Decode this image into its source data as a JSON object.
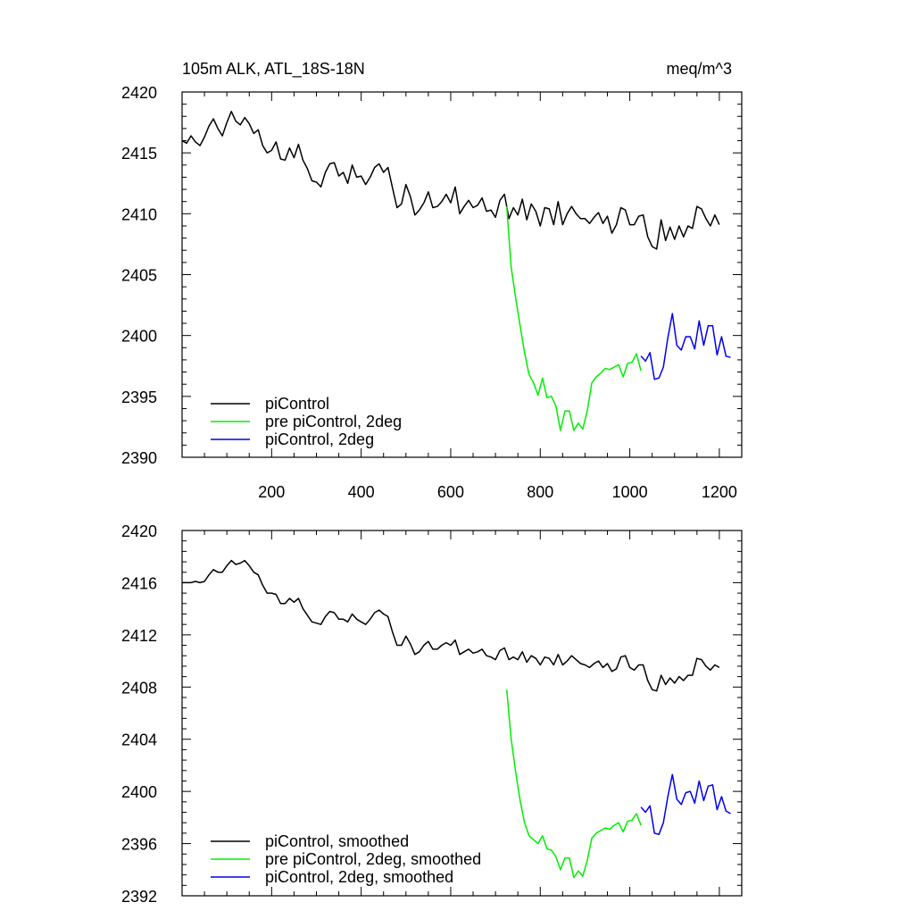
{
  "chart_data": [
    {
      "type": "line",
      "title_left": "105m ALK, ATL_18S-18N",
      "title_right": "meq/m^3",
      "xlim": [
        0,
        1250
      ],
      "ylim": [
        2390,
        2420
      ],
      "x_tick_labels": [
        "200",
        "400",
        "600",
        "800",
        "1000",
        "1200"
      ],
      "y_tick_labels": [
        "2390",
        "2395",
        "2400",
        "2405",
        "2410",
        "2415",
        "2420"
      ],
      "x_ticks": [
        200,
        400,
        600,
        800,
        1000,
        1200
      ],
      "y_ticks": [
        2390,
        2395,
        2400,
        2405,
        2410,
        2415,
        2420
      ],
      "legend_position": "bottom-left",
      "series": [
        {
          "name": "piControl",
          "color": "#000000",
          "x_start": 0,
          "x_step": 10,
          "values": [
            2416.0,
            2415.8,
            2416.4,
            2415.9,
            2415.6,
            2416.3,
            2417.2,
            2417.8,
            2417.0,
            2416.4,
            2417.5,
            2418.4,
            2417.6,
            2417.3,
            2417.9,
            2417.4,
            2416.6,
            2416.9,
            2415.6,
            2415.0,
            2415.2,
            2415.9,
            2414.5,
            2414.4,
            2415.4,
            2414.6,
            2415.7,
            2414.4,
            2413.7,
            2412.7,
            2412.6,
            2412.2,
            2413.4,
            2414.1,
            2414.2,
            2413.1,
            2413.4,
            2412.5,
            2414.0,
            2413.0,
            2413.1,
            2412.4,
            2413.0,
            2413.8,
            2414.1,
            2413.4,
            2413.8,
            2412.1,
            2410.5,
            2410.8,
            2412.4,
            2411.4,
            2409.9,
            2410.3,
            2410.9,
            2411.8,
            2410.5,
            2410.6,
            2411.0,
            2411.6,
            2410.9,
            2412.2,
            2410.0,
            2410.6,
            2411.1,
            2410.5,
            2410.7,
            2411.3,
            2410.2,
            2410.3,
            2409.7,
            2411.1,
            2411.6,
            2409.6,
            2410.5,
            2409.9,
            2411.2,
            2409.5,
            2410.8,
            2410.2,
            2409.0,
            2410.5,
            2410.4,
            2409.1,
            2411.0,
            2409.1,
            2410.0,
            2410.6,
            2410.0,
            2409.6,
            2409.6,
            2409.2,
            2409.7,
            2410.1,
            2409.2,
            2409.8,
            2408.4,
            2409.1,
            2410.5,
            2410.3,
            2409.1,
            2409.1,
            2409.8,
            2409.9,
            2408.1,
            2407.3,
            2407.1,
            2409.5,
            2407.8,
            2408.9,
            2407.9,
            2409.0,
            2408.1,
            2409.0,
            2408.8,
            2410.6,
            2410.4,
            2409.6,
            2409.0,
            2409.9,
            2409.1
          ]
        },
        {
          "name": "pre piControl, 2deg",
          "color": "#00ee00",
          "x_start": 725,
          "x_step": 10,
          "values": [
            2410.6,
            2405.6,
            2403.1,
            2400.8,
            2398.6,
            2396.8,
            2396.1,
            2395.1,
            2396.5,
            2394.9,
            2395.0,
            2394.2,
            2392.2,
            2393.8,
            2393.8,
            2392.2,
            2392.8,
            2392.3,
            2393.8,
            2396.1,
            2396.6,
            2396.9,
            2397.3,
            2397.2,
            2397.4,
            2397.6,
            2396.6,
            2397.7,
            2397.8,
            2398.5,
            2397.1
          ]
        },
        {
          "name": "piControl, 2deg",
          "color": "#0000ee",
          "x_start": 1025,
          "x_step": 10,
          "values": [
            2398.3,
            2397.9,
            2398.6,
            2396.4,
            2396.5,
            2397.4,
            2399.8,
            2401.8,
            2399.2,
            2398.8,
            2399.9,
            2399.9,
            2398.9,
            2401.2,
            2399.2,
            2400.8,
            2400.8,
            2398.4,
            2399.9,
            2398.3,
            2398.2
          ]
        }
      ]
    },
    {
      "type": "line",
      "xlim": [
        0,
        1250
      ],
      "ylim": [
        2392,
        2420
      ],
      "x_tick_labels": [],
      "y_tick_labels": [
        "2392",
        "2396",
        "2400",
        "2404",
        "2408",
        "2412",
        "2416",
        "2420"
      ],
      "x_ticks": [
        200,
        400,
        600,
        800,
        1000,
        1200
      ],
      "y_ticks": [
        2392,
        2396,
        2400,
        2404,
        2408,
        2412,
        2416,
        2420
      ],
      "legend_position": "bottom-left",
      "series": [
        {
          "name": "piControl, smoothed",
          "color": "#000000",
          "x_start": 0,
          "x_step": 10,
          "values": [
            2416.0,
            2416.0,
            2416.0,
            2416.1,
            2416.0,
            2416.1,
            2416.6,
            2417.0,
            2416.8,
            2416.8,
            2417.3,
            2417.7,
            2417.4,
            2417.5,
            2417.7,
            2417.3,
            2416.8,
            2416.6,
            2415.8,
            2415.2,
            2415.2,
            2415.1,
            2414.4,
            2414.4,
            2414.8,
            2414.5,
            2414.8,
            2414.0,
            2413.5,
            2413.0,
            2412.9,
            2412.8,
            2413.4,
            2413.8,
            2413.7,
            2413.2,
            2413.2,
            2413.0,
            2413.6,
            2413.2,
            2413.0,
            2412.8,
            2413.2,
            2413.7,
            2413.9,
            2413.6,
            2413.4,
            2412.2,
            2411.2,
            2411.2,
            2411.9,
            2411.3,
            2410.5,
            2410.7,
            2411.2,
            2411.5,
            2410.9,
            2410.9,
            2411.2,
            2411.4,
            2411.2,
            2411.6,
            2410.5,
            2410.7,
            2410.9,
            2410.6,
            2410.7,
            2410.9,
            2410.4,
            2410.3,
            2410.1,
            2410.8,
            2411.0,
            2410.1,
            2410.3,
            2410.1,
            2410.7,
            2409.9,
            2410.4,
            2410.2,
            2409.7,
            2410.3,
            2410.2,
            2409.7,
            2410.5,
            2409.7,
            2410.0,
            2410.4,
            2410.1,
            2409.8,
            2409.7,
            2409.5,
            2409.8,
            2410.0,
            2409.5,
            2409.8,
            2409.2,
            2409.4,
            2410.3,
            2410.4,
            2409.5,
            2409.3,
            2409.7,
            2409.7,
            2408.5,
            2407.8,
            2407.7,
            2408.9,
            2408.2,
            2408.7,
            2408.3,
            2408.8,
            2408.5,
            2408.9,
            2408.9,
            2410.2,
            2410.1,
            2409.6,
            2409.3,
            2409.7,
            2409.5
          ]
        },
        {
          "name": "pre piControl, 2deg, smoothed",
          "color": "#00ee00",
          "x_start": 725,
          "x_step": 10,
          "values": [
            2407.8,
            2404.0,
            2401.5,
            2399.3,
            2397.6,
            2396.6,
            2396.3,
            2396.0,
            2396.6,
            2395.6,
            2395.5,
            2395.0,
            2394.0,
            2394.9,
            2394.9,
            2393.4,
            2393.9,
            2393.5,
            2394.7,
            2396.4,
            2396.8,
            2397.0,
            2397.2,
            2397.1,
            2397.4,
            2397.6,
            2396.9,
            2397.7,
            2397.8,
            2398.3,
            2397.4
          ]
        },
        {
          "name": "piControl, 2deg, smoothed",
          "color": "#0000ee",
          "x_start": 1025,
          "x_step": 10,
          "values": [
            2398.8,
            2398.4,
            2398.9,
            2396.8,
            2396.7,
            2397.6,
            2399.6,
            2401.3,
            2399.4,
            2399.0,
            2399.9,
            2400.0,
            2399.1,
            2400.8,
            2399.3,
            2400.4,
            2400.5,
            2398.6,
            2399.6,
            2398.5,
            2398.3
          ]
        }
      ]
    }
  ]
}
